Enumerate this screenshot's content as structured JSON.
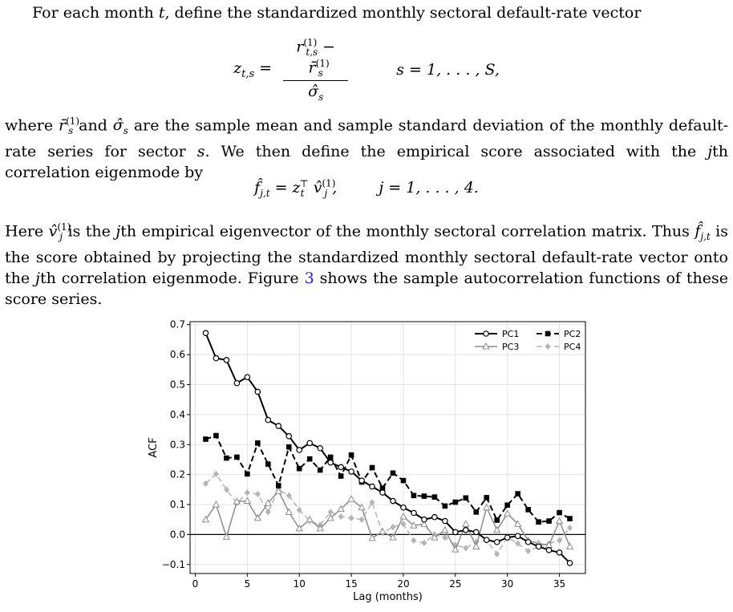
{
  "text": {
    "p1": "For each month t, define the standardized monthly sectoral default-rate vector",
    "eq1_lhs": "z",
    "eq1_lhs_sub": "t,s",
    "eq1_num": "r(1)t,s − r̄(1)s",
    "eq1_den": "σ̂s",
    "eq1_cond": "s = 1, . . . , S,",
    "p2": "where r̄(1)s and σ̂s are the sample mean and sample standard deviation of the monthly default-rate series for sector s. We then define the empirical score associated with the jth correlation eigenmode by",
    "eq2_lhs": "f̂j,t = z⊤t v̂(1)j ,",
    "eq2_cond": "j = 1, . . . , 4.",
    "p3a": "Here v̂(1)j is the jth empirical eigenvector of the monthly sectoral correlation matrix. Thus f̂j,t is the score obtained by projecting the standardized monthly sectoral default-rate vector onto the jth correlation eigenmode. Figure ",
    "p3_ref": "3",
    "p3b": " shows the sample autocorrelation functions of these score series."
  },
  "chart_data": {
    "type": "line",
    "xlabel": "Lag (months)",
    "ylabel": "ACF",
    "xlim": [
      -0.5,
      37.5
    ],
    "ylim": [
      -0.13,
      0.71
    ],
    "xticks": [
      0,
      5,
      10,
      15,
      20,
      25,
      30,
      35
    ],
    "yticks": [
      -0.1,
      0.0,
      0.1,
      0.2,
      0.3,
      0.4,
      0.5,
      0.6,
      0.7
    ],
    "ytick_labels": [
      "−0.1",
      "0.0",
      "0.1",
      "0.2",
      "0.3",
      "0.4",
      "0.5",
      "0.6",
      "0.7"
    ],
    "grid": true,
    "zero_line": true,
    "legend_placement": "top-right",
    "x": [
      1,
      2,
      3,
      4,
      5,
      6,
      7,
      8,
      9,
      10,
      11,
      12,
      13,
      14,
      15,
      16,
      17,
      18,
      19,
      20,
      21,
      22,
      23,
      24,
      25,
      26,
      27,
      28,
      29,
      30,
      31,
      32,
      33,
      34,
      35,
      36
    ],
    "series": [
      {
        "name": "PC1",
        "color": "#000000",
        "marker": "circle-open",
        "dash": "solid",
        "width": 2,
        "values": [
          0.672,
          0.588,
          0.582,
          0.505,
          0.525,
          0.476,
          0.382,
          0.362,
          0.328,
          0.282,
          0.305,
          0.288,
          0.24,
          0.225,
          0.21,
          0.18,
          0.16,
          0.14,
          0.112,
          0.09,
          0.072,
          0.05,
          0.058,
          0.045,
          0.008,
          0.015,
          0.008,
          -0.018,
          -0.025,
          -0.01,
          -0.005,
          -0.025,
          -0.04,
          -0.052,
          -0.06,
          -0.095
        ]
      },
      {
        "name": "PC2",
        "color": "#000000",
        "marker": "square-filled",
        "dash": "dashed",
        "width": 2,
        "values": [
          0.318,
          0.33,
          0.255,
          0.258,
          0.202,
          0.305,
          0.235,
          0.163,
          0.292,
          0.22,
          0.252,
          0.215,
          0.258,
          0.195,
          0.265,
          0.175,
          0.223,
          0.155,
          0.205,
          0.18,
          0.13,
          0.128,
          0.125,
          0.095,
          0.108,
          0.122,
          0.075,
          0.123,
          0.048,
          0.098,
          0.136,
          0.083,
          0.042,
          0.045,
          0.073,
          0.053
        ]
      },
      {
        "name": "PC3",
        "color": "#8c8c8c",
        "marker": "triangle-open",
        "dash": "solid",
        "width": 1.5,
        "values": [
          0.05,
          0.1,
          -0.008,
          0.11,
          0.112,
          0.055,
          0.105,
          0.145,
          0.075,
          0.02,
          0.05,
          0.02,
          0.055,
          0.085,
          0.118,
          0.09,
          -0.012,
          0.01,
          -0.01,
          0.06,
          0.03,
          0.035,
          -0.01,
          0.015,
          -0.05,
          0.035,
          -0.04,
          0.09,
          0.015,
          0.07,
          0.035,
          -0.02,
          -0.03,
          -0.035,
          0.045,
          -0.04
        ]
      },
      {
        "name": "PC4",
        "color": "#b4b4b4",
        "marker": "diamond-filled",
        "dash": "dashed",
        "width": 1.5,
        "values": [
          0.17,
          0.202,
          0.15,
          0.105,
          0.14,
          0.135,
          0.075,
          0.15,
          0.13,
          0.082,
          0.045,
          0.032,
          0.075,
          0.06,
          0.055,
          0.05,
          0.107,
          0.005,
          0.025,
          0.035,
          -0.02,
          -0.028,
          0.0,
          -0.01,
          -0.035,
          -0.045,
          -0.025,
          -0.02,
          -0.065,
          -0.01,
          -0.03,
          -0.055,
          -0.04,
          -0.03,
          -0.02,
          0.022
        ]
      }
    ]
  }
}
